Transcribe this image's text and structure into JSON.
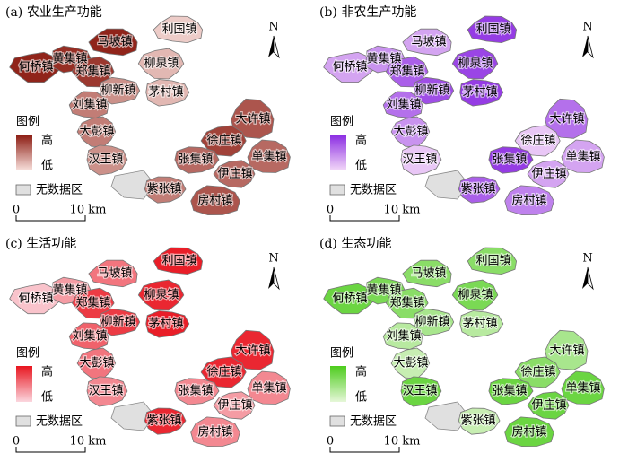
{
  "panels": [
    {
      "title": "(a) 农业生产功能",
      "towns": [
        "何桥镇",
        "黄集镇",
        "马坡镇",
        "郑集镇",
        "柳新镇",
        "利国镇",
        "柳泉镇",
        "茅村镇",
        "刘集镇",
        "大彭镇",
        "汉王镇",
        "大许镇",
        "徐庄镇",
        "张集镇",
        "单集镇",
        "伊庄镇",
        "紫张镇",
        "房村镇"
      ],
      "legend": {
        "title": "图例",
        "high": "高",
        "low": "低",
        "no_data": "无数据区"
      },
      "scale": {
        "start": "0",
        "end": "10 km"
      },
      "north": "N"
    },
    {
      "title": "(b) 非农生产功能",
      "towns": [
        "何桥镇",
        "黄集镇",
        "马坡镇",
        "郑集镇",
        "柳新镇",
        "利国镇",
        "柳泉镇",
        "茅村镇",
        "刘集镇",
        "大彭镇",
        "汉王镇",
        "大许镇",
        "徐庄镇",
        "张集镇",
        "单集镇",
        "伊庄镇",
        "紫张镇",
        "房村镇"
      ],
      "legend": {
        "title": "图例",
        "high": "高",
        "low": "低",
        "no_data": "无数据区"
      },
      "scale": {
        "start": "0",
        "end": "10 km"
      },
      "north": "N"
    },
    {
      "title": "(c) 生活功能",
      "towns": [
        "何桥镇",
        "黄集镇",
        "马坡镇",
        "郑集镇",
        "柳新镇",
        "利国镇",
        "柳泉镇",
        "茅村镇",
        "刘集镇",
        "大彭镇",
        "汉王镇",
        "大许镇",
        "徐庄镇",
        "张集镇",
        "单集镇",
        "伊庄镇",
        "紫张镇",
        "房村镇"
      ],
      "legend": {
        "title": "图例",
        "high": "高",
        "low": "低",
        "no_data": "无数据区"
      },
      "scale": {
        "start": "0",
        "end": "10 km"
      },
      "north": "N"
    },
    {
      "title": "(d) 生态功能",
      "towns": [
        "何桥镇",
        "黄集镇",
        "马坡镇",
        "郑集镇",
        "柳新镇",
        "利国镇",
        "柳泉镇",
        "茅村镇",
        "刘集镇",
        "大彭镇",
        "汉王镇",
        "大许镇",
        "徐庄镇",
        "张集镇",
        "单集镇",
        "伊庄镇",
        "紫张镇",
        "房村镇"
      ],
      "legend": {
        "title": "图例",
        "high": "高",
        "low": "低",
        "no_data": "无数据区"
      },
      "scale": {
        "start": "0",
        "end": "10 km"
      },
      "north": "N"
    }
  ]
}
